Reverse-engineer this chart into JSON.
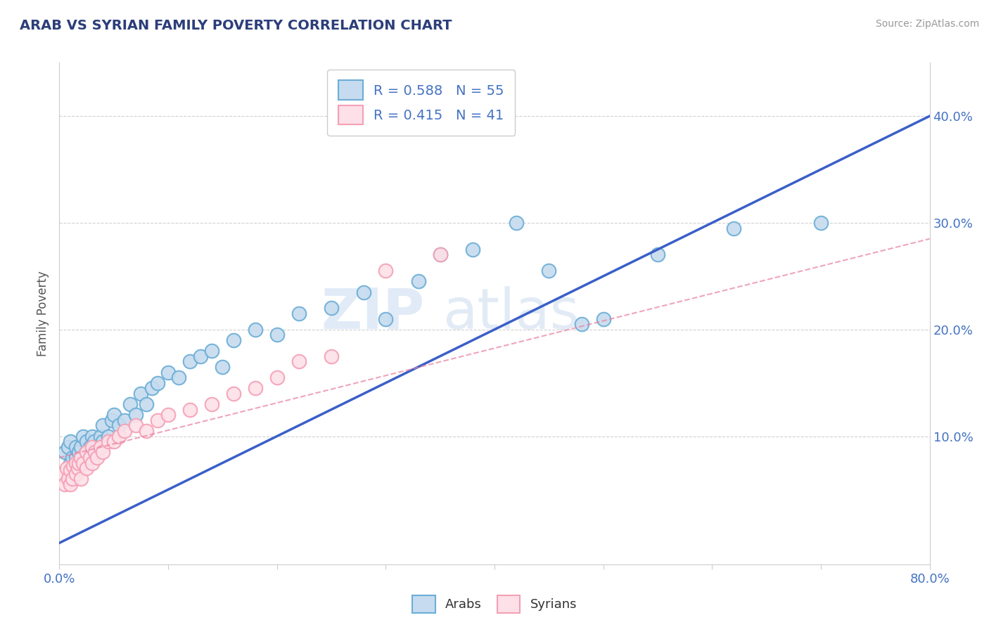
{
  "title": "ARAB VS SYRIAN FAMILY POVERTY CORRELATION CHART",
  "source": "Source: ZipAtlas.com",
  "ylabel": "Family Poverty",
  "xlim": [
    0.0,
    0.8
  ],
  "ylim": [
    -0.02,
    0.45
  ],
  "arab_R": 0.588,
  "arab_N": 55,
  "syrian_R": 0.415,
  "syrian_N": 41,
  "arab_color": "#6baed6",
  "arab_color_fill": "#c6dbef",
  "syrian_color": "#f4a0b5",
  "syrian_color_fill": "#fde0e8",
  "watermark_zip": "ZIP",
  "watermark_atlas": "atlas",
  "background_color": "#ffffff",
  "grid_color": "#cccccc",
  "line_arab_color": "#3a5fc8",
  "line_syrian_color": "#e87fa0",
  "tick_color": "#4472c4",
  "arab_scatter_x": [
    0.005,
    0.008,
    0.01,
    0.01,
    0.012,
    0.015,
    0.015,
    0.018,
    0.02,
    0.02,
    0.022,
    0.025,
    0.025,
    0.028,
    0.03,
    0.03,
    0.032,
    0.035,
    0.038,
    0.04,
    0.04,
    0.045,
    0.048,
    0.05,
    0.055,
    0.06,
    0.065,
    0.07,
    0.075,
    0.08,
    0.085,
    0.09,
    0.1,
    0.11,
    0.12,
    0.13,
    0.14,
    0.15,
    0.16,
    0.18,
    0.2,
    0.22,
    0.25,
    0.28,
    0.3,
    0.33,
    0.35,
    0.38,
    0.42,
    0.45,
    0.48,
    0.5,
    0.55,
    0.62,
    0.7
  ],
  "arab_scatter_y": [
    0.085,
    0.09,
    0.075,
    0.095,
    0.08,
    0.08,
    0.09,
    0.085,
    0.075,
    0.09,
    0.1,
    0.085,
    0.095,
    0.09,
    0.08,
    0.1,
    0.095,
    0.09,
    0.1,
    0.095,
    0.11,
    0.1,
    0.115,
    0.12,
    0.11,
    0.115,
    0.13,
    0.12,
    0.14,
    0.13,
    0.145,
    0.15,
    0.16,
    0.155,
    0.17,
    0.175,
    0.18,
    0.165,
    0.19,
    0.2,
    0.195,
    0.215,
    0.22,
    0.235,
    0.21,
    0.245,
    0.27,
    0.275,
    0.3,
    0.255,
    0.205,
    0.21,
    0.27,
    0.295,
    0.3
  ],
  "syrian_scatter_x": [
    0.003,
    0.005,
    0.007,
    0.008,
    0.01,
    0.01,
    0.012,
    0.013,
    0.015,
    0.015,
    0.017,
    0.018,
    0.02,
    0.02,
    0.022,
    0.025,
    0.025,
    0.028,
    0.03,
    0.03,
    0.033,
    0.035,
    0.038,
    0.04,
    0.045,
    0.05,
    0.055,
    0.06,
    0.07,
    0.08,
    0.09,
    0.1,
    0.12,
    0.14,
    0.16,
    0.18,
    0.2,
    0.22,
    0.25,
    0.3,
    0.35
  ],
  "syrian_scatter_y": [
    0.065,
    0.055,
    0.07,
    0.06,
    0.055,
    0.068,
    0.06,
    0.072,
    0.065,
    0.075,
    0.07,
    0.075,
    0.06,
    0.08,
    0.075,
    0.07,
    0.085,
    0.08,
    0.075,
    0.09,
    0.085,
    0.08,
    0.09,
    0.085,
    0.095,
    0.095,
    0.1,
    0.105,
    0.11,
    0.105,
    0.115,
    0.12,
    0.125,
    0.13,
    0.14,
    0.145,
    0.155,
    0.17,
    0.175,
    0.255,
    0.27
  ]
}
